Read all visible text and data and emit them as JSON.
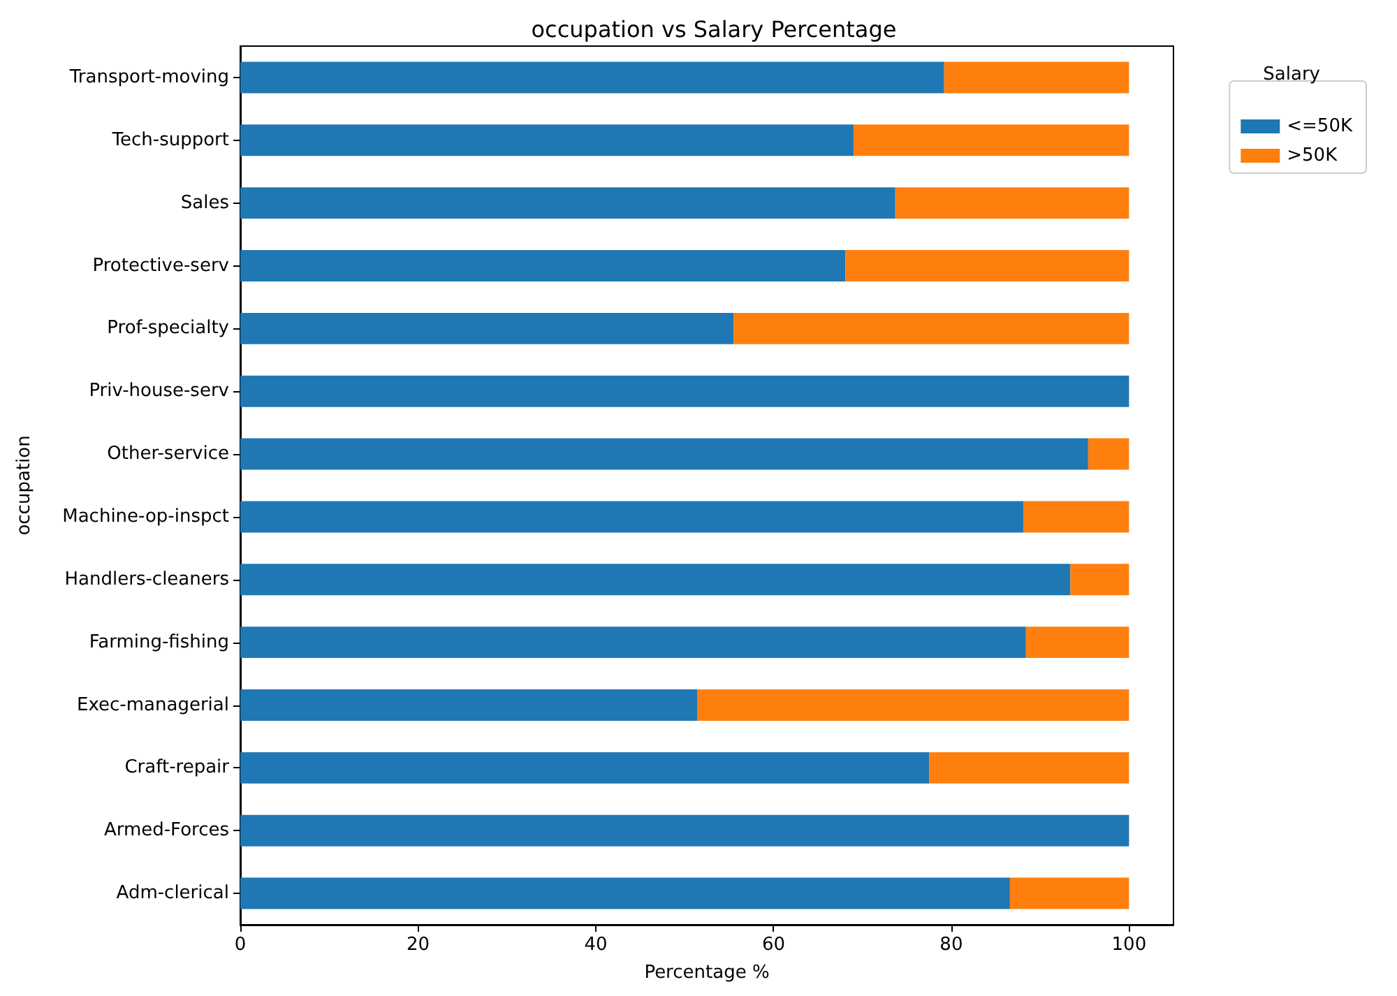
{
  "chart_data": {
    "type": "bar",
    "orientation": "horizontal",
    "stacked": true,
    "title": "occupation vs Salary Percentage",
    "xlabel": "Percentage %",
    "ylabel": "occupation",
    "legend_title": "Salary",
    "legend": "top right",
    "categories": [
      "Transport-moving",
      "Tech-support",
      "Sales",
      "Protective-serv",
      "Prof-specialty",
      "Priv-house-serv",
      "Other-service",
      "Machine-op-inspct",
      "Handlers-cleaners",
      "Farming-fishing",
      "Exec-managerial",
      "Craft-repair",
      "Armed-Forces",
      "Adm-clerical"
    ],
    "series": [
      {
        "name": "<=50K",
        "color": "#1f77b4",
        "values": [
          79.2,
          69.0,
          73.7,
          68.1,
          55.5,
          100,
          95.4,
          88.1,
          93.4,
          88.4,
          51.4,
          77.5,
          100,
          86.6
        ]
      },
      {
        "name": ">50K",
        "color": "#ff7f0e",
        "values": [
          20.8,
          31.0,
          26.3,
          31.9,
          44.5,
          0,
          4.6,
          11.9,
          6.6,
          11.6,
          48.6,
          22.5,
          0,
          13.4
        ]
      }
    ],
    "xlim": [
      0,
      105
    ],
    "xticks": [
      0,
      20,
      40,
      60,
      80,
      100
    ]
  }
}
